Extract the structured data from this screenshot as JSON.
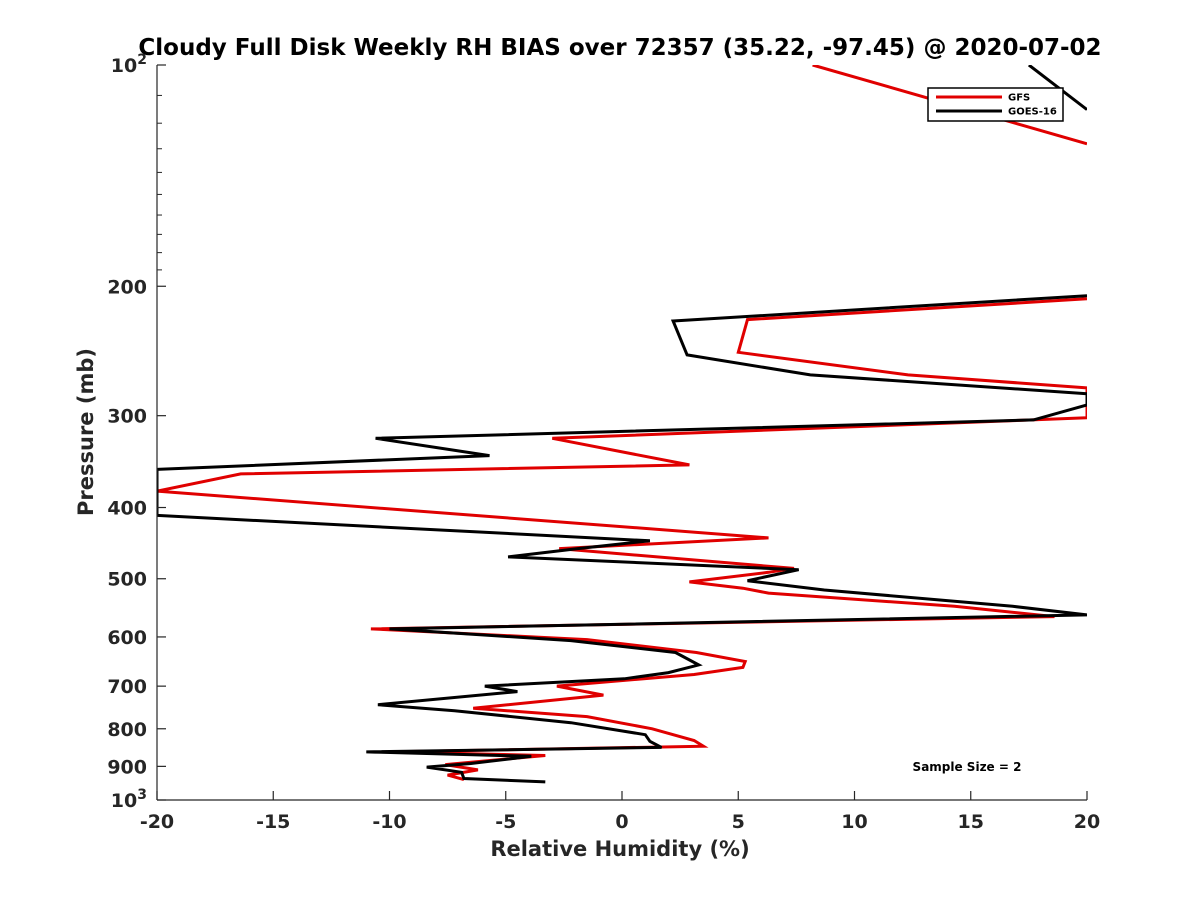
{
  "chart_data": {
    "type": "line",
    "title": "Cloudy Full Disk Weekly RH BIAS over 72357 (35.22, -97.45) @ 2020-07-02",
    "xlabel": "Relative Humidity (%)",
    "ylabel": "Pressure (mb)",
    "xlim": [
      -20,
      20
    ],
    "ylim": [
      100,
      1000
    ],
    "y_scale": "log",
    "y_reversed": true,
    "grid": false,
    "legend_position": "top-right",
    "x_ticks": [
      "-20",
      "-15",
      "-10",
      "-5",
      "0",
      "5",
      "10",
      "15",
      "20"
    ],
    "y_ticks": [
      {
        "value": 100,
        "base": "10",
        "exp": "2"
      },
      {
        "value": 200,
        "label": "200"
      },
      {
        "value": 300,
        "label": "300"
      },
      {
        "value": 400,
        "label": "400"
      },
      {
        "value": 500,
        "label": "500"
      },
      {
        "value": 600,
        "label": "600"
      },
      {
        "value": 700,
        "label": "700"
      },
      {
        "value": 800,
        "label": "800"
      },
      {
        "value": 900,
        "label": "900"
      },
      {
        "value": 1000,
        "base": "10",
        "exp": "3"
      }
    ],
    "annotation": "Sample Size = 2",
    "series": [
      {
        "name": "GFS",
        "color": "#e00000",
        "points": [
          [
            -6.8,
            938
          ],
          [
            -7.5,
            925
          ],
          [
            -6.2,
            910
          ],
          [
            -7.6,
            895
          ],
          [
            -3.3,
            870
          ],
          [
            -10,
            860
          ],
          [
            3.5,
            845
          ],
          [
            3.1,
            830
          ],
          [
            1.3,
            800
          ],
          [
            -1.5,
            770
          ],
          [
            -6.4,
            750
          ],
          [
            -0.8,
            720
          ],
          [
            -2.8,
            700
          ],
          [
            3.1,
            675
          ],
          [
            5.2,
            660
          ],
          [
            5.3,
            648
          ],
          [
            3.2,
            630
          ],
          [
            -1.5,
            605
          ],
          [
            -10.8,
            585
          ],
          [
            18.6,
            563
          ],
          [
            14.3,
            545
          ],
          [
            6.3,
            523
          ],
          [
            5.2,
            515
          ],
          [
            2.9,
            505
          ],
          [
            6.3,
            490
          ],
          [
            7.4,
            484
          ],
          [
            -2.7,
            455
          ],
          [
            6.3,
            440
          ],
          [
            -20,
            380
          ],
          [
            -16.4,
            360
          ],
          [
            2.9,
            350
          ],
          [
            -3,
            322
          ],
          [
            20,
            302
          ],
          [
            20,
            275
          ],
          [
            12.3,
            264
          ],
          [
            5.0,
            246
          ],
          [
            5.4,
            222
          ],
          [
            20,
            208
          ]
        ]
      },
      {
        "name": "GOES-16",
        "color": "#000000",
        "points": [
          [
            -3.3,
            945
          ],
          [
            -6.8,
            935
          ],
          [
            -6.9,
            917
          ],
          [
            -8.4,
            902
          ],
          [
            -6.5,
            892
          ],
          [
            -3.9,
            872
          ],
          [
            -11,
            860
          ],
          [
            1.7,
            848
          ],
          [
            1.2,
            832
          ],
          [
            1.0,
            815
          ],
          [
            -2.2,
            785
          ],
          [
            -7.2,
            756
          ],
          [
            -10.5,
            742
          ],
          [
            -4.5,
            712
          ],
          [
            -5.9,
            700
          ],
          [
            0.1,
            684
          ],
          [
            2.0,
            671
          ],
          [
            3.3,
            655
          ],
          [
            2.3,
            630
          ],
          [
            -2.2,
            607
          ],
          [
            -10.0,
            585
          ],
          [
            20,
            560
          ],
          [
            16.8,
            545
          ],
          [
            8.7,
            518
          ],
          [
            5.4,
            503
          ],
          [
            7.6,
            486
          ],
          [
            -4.9,
            467
          ],
          [
            -1.9,
            455
          ],
          [
            1.2,
            444
          ],
          [
            -20,
            410
          ],
          [
            -20,
            355
          ],
          [
            -5.7,
            340
          ],
          [
            -10.6,
            322
          ],
          [
            17.7,
            304
          ],
          [
            20,
            290
          ],
          [
            20,
            280
          ],
          [
            8.1,
            264
          ],
          [
            2.8,
            248
          ],
          [
            2.2,
            223
          ],
          [
            20,
            206
          ]
        ]
      },
      {
        "name": "",
        "color": "#e00000",
        "points": [
          [
            8.2,
            100
          ],
          [
            20,
            128
          ]
        ]
      },
      {
        "name": "",
        "color": "#000000",
        "points": [
          [
            17.5,
            100
          ],
          [
            20,
            115
          ]
        ]
      }
    ]
  }
}
